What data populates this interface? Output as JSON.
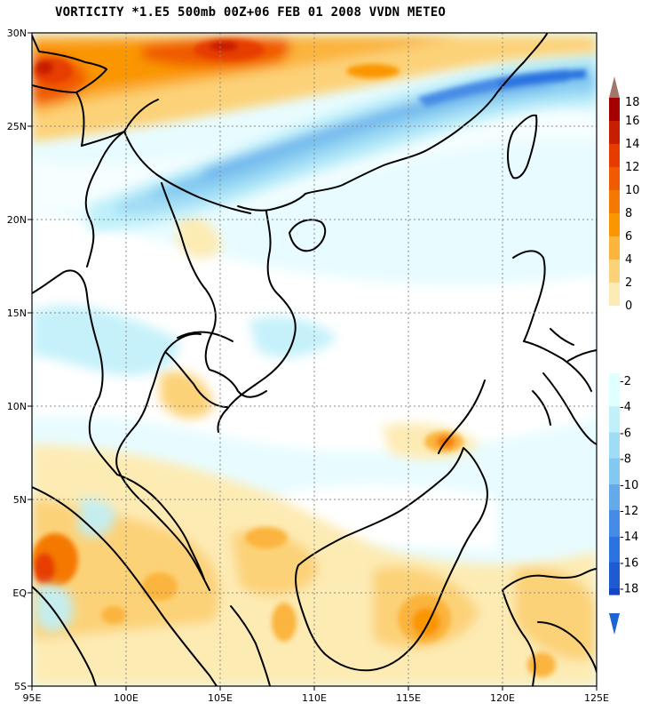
{
  "title": "VORTICITY *1.E5 500mb 00Z+06 FEB 01 2008 VVDN METEO",
  "map": {
    "lon_labels": [
      "95E",
      "100E",
      "105E",
      "110E",
      "115E",
      "120E",
      "125E"
    ],
    "lat_labels": [
      "30N",
      "25N",
      "20N",
      "15N",
      "10N",
      "5N",
      "EQ",
      "5S"
    ]
  },
  "legend": {
    "positive": [
      {
        "label": "18",
        "color": "#a50000"
      },
      {
        "label": "16",
        "color": "#c81e00"
      },
      {
        "label": "14",
        "color": "#e63c00"
      },
      {
        "label": "12",
        "color": "#f05a00"
      },
      {
        "label": "10",
        "color": "#f57800"
      },
      {
        "label": "8",
        "color": "#fa9600"
      },
      {
        "label": "6",
        "color": "#fbb43c"
      },
      {
        "label": "4",
        "color": "#fcd278"
      },
      {
        "label": "2",
        "color": "#fdebb4"
      },
      {
        "label": "0",
        "color": "#ffffff"
      }
    ],
    "negative": [
      {
        "label": "-2",
        "color": "#e0ffff"
      },
      {
        "label": "-4",
        "color": "#c0f0fa"
      },
      {
        "label": "-6",
        "color": "#a0dcf5"
      },
      {
        "label": "-8",
        "color": "#82c8f0"
      },
      {
        "label": "-10",
        "color": "#64aaeb"
      },
      {
        "label": "-12",
        "color": "#468ce6"
      },
      {
        "label": "-14",
        "color": "#2a73e0"
      },
      {
        "label": "-16",
        "color": "#1e5ad2"
      },
      {
        "label": "-18",
        "color": "#1446c3"
      }
    ],
    "top_arrow_color": "#a0786e",
    "bottom_arrow_color": "#1e64d2"
  }
}
